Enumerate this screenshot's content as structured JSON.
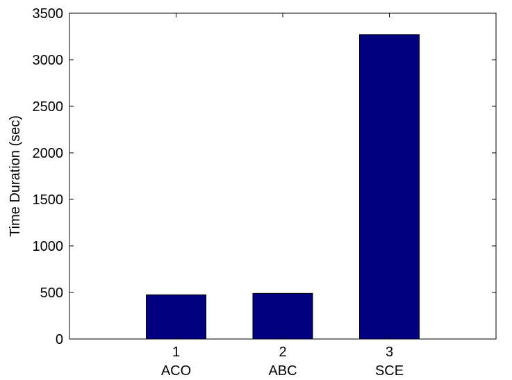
{
  "chart_data": {
    "type": "bar",
    "categories": [
      "1",
      "2",
      "3"
    ],
    "category_names": [
      "ACO",
      "ABC",
      "SCE"
    ],
    "values": [
      475,
      490,
      3270
    ],
    "title": "",
    "xlabel": "",
    "ylabel": "Time Duration (sec)",
    "ylim": [
      0,
      3500
    ],
    "yticks": [
      0,
      500,
      1000,
      1500,
      2000,
      2500,
      3000,
      3500
    ],
    "ytick_labels": [
      "0",
      "500",
      "1000",
      "1500",
      "2000",
      "2500",
      "3000",
      "3500"
    ],
    "grid": false,
    "legend": "none",
    "colors": {
      "bar": "#000080",
      "axis": "#000000",
      "background": "#ffffff"
    }
  }
}
